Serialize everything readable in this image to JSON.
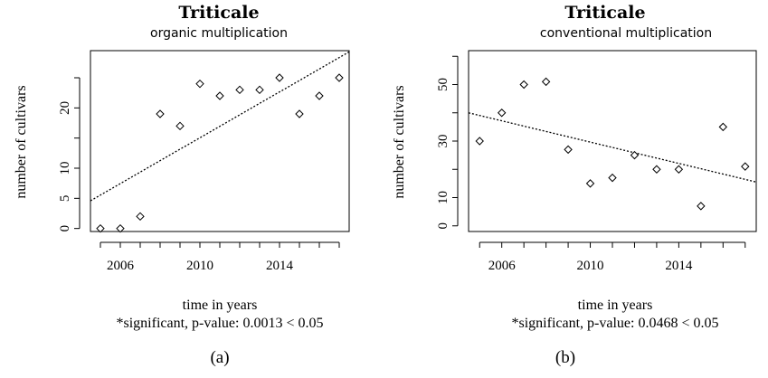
{
  "chart_data": [
    {
      "type": "scatter",
      "title": "Triticale",
      "subtitle": "organic multiplication",
      "xlabel": "time in years",
      "ylabel": "number of cultivars",
      "note": "*significant, p-value:  0.0013  < 0.05",
      "panel_label": "(a)",
      "xlim": [
        2004.5,
        2017.5
      ],
      "ylim": [
        -0.5,
        29.5
      ],
      "xticks": [
        2006,
        2010,
        2014
      ],
      "xtick_labels": [
        "2006",
        "2010",
        "2014"
      ],
      "yticks": [
        0,
        5,
        10,
        20
      ],
      "ytick_labels": [
        "0",
        "5",
        "10",
        "20"
      ],
      "points": {
        "x": [
          2005,
          2006,
          2007,
          2008,
          2009,
          2010,
          2011,
          2012,
          2013,
          2014,
          2015,
          2016,
          2017
        ],
        "y": [
          0,
          0,
          2,
          19,
          17,
          24,
          22,
          23,
          23,
          25,
          19,
          22,
          25
        ]
      },
      "trend_line": {
        "x": [
          2004.5,
          2017.5
        ],
        "y": [
          4.6,
          29.3
        ],
        "style": "dotted"
      },
      "grid": false
    },
    {
      "type": "scatter",
      "title": "Triticale",
      "subtitle": "conventional multiplication",
      "xlabel": "time in years",
      "ylabel": "number of cultivars",
      "note": "*significant, p-value:  0.0468  < 0.05",
      "panel_label": "(b)",
      "xlim": [
        2004.5,
        2017.5
      ],
      "ylim": [
        -2,
        62
      ],
      "xticks": [
        2006,
        2010,
        2014
      ],
      "xtick_labels": [
        "2006",
        "2010",
        "2014"
      ],
      "yticks": [
        0,
        10,
        30,
        50
      ],
      "ytick_labels": [
        "0",
        "10",
        "30",
        "50"
      ],
      "points": {
        "x": [
          2005,
          2006,
          2007,
          2008,
          2009,
          2010,
          2011,
          2012,
          2013,
          2014,
          2015,
          2016,
          2017
        ],
        "y": [
          30,
          40,
          50,
          51,
          27,
          15,
          17,
          25,
          20,
          20,
          7,
          35,
          21
        ]
      },
      "trend_line": {
        "x": [
          2004.5,
          2017.5
        ],
        "y": [
          40.0,
          15.5
        ],
        "style": "dotted"
      },
      "grid": false
    }
  ]
}
